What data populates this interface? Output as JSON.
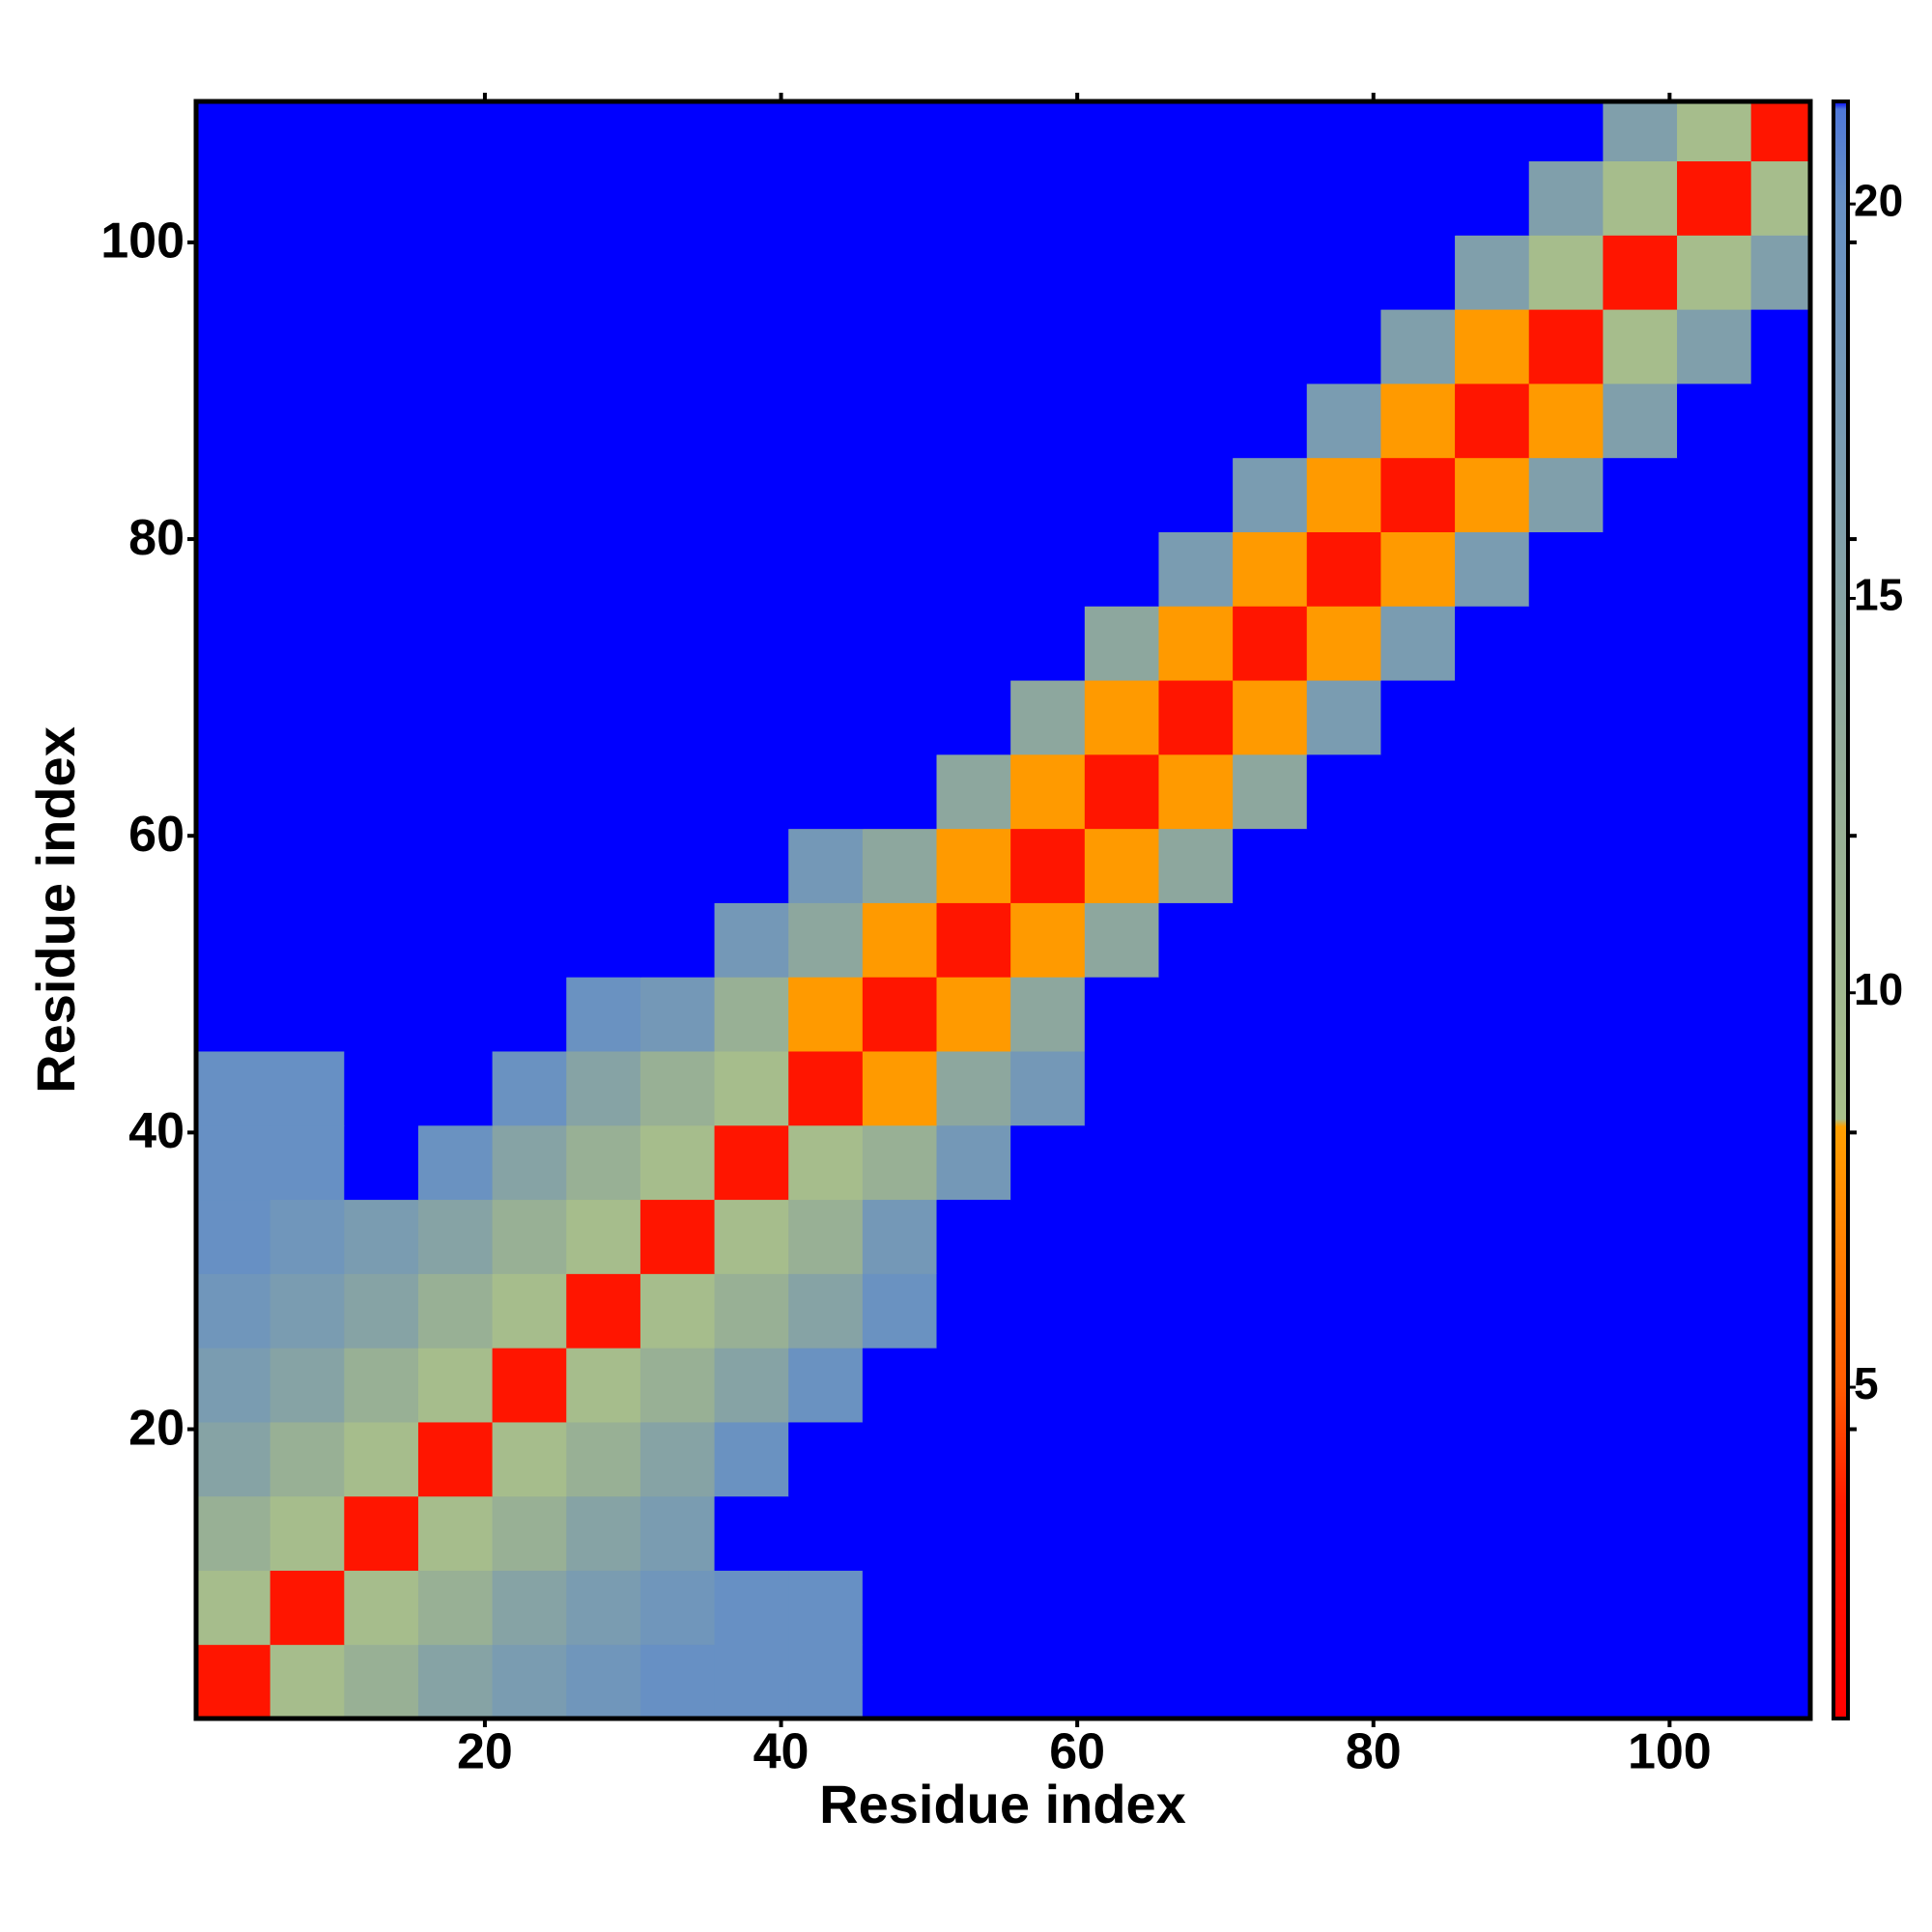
{
  "chart_data": {
    "type": "heatmap",
    "x_label": "Residue index",
    "y_label": "Residue index",
    "x": [
      3,
      8,
      13,
      18,
      23,
      28,
      33,
      38,
      43,
      48,
      53,
      58,
      63,
      68,
      73,
      78,
      83,
      88,
      93,
      98,
      103,
      108
    ],
    "y": [
      3,
      8,
      13,
      18,
      23,
      28,
      33,
      38,
      43,
      48,
      53,
      58,
      63,
      68,
      73,
      78,
      83,
      88,
      93,
      98,
      103,
      108
    ],
    "z": [
      [
        3,
        9,
        12,
        15,
        17,
        18.5,
        20,
        20,
        20,
        21.3,
        21.3,
        21.3,
        21.3,
        21.3,
        21.3,
        21.3,
        21.3,
        21.3,
        21.3,
        21.3,
        21.3,
        21.3
      ],
      [
        9,
        3,
        9,
        12,
        15,
        17,
        18.5,
        20,
        20,
        21.3,
        21.3,
        21.3,
        21.3,
        21.3,
        21.3,
        21.3,
        21.3,
        21.3,
        21.3,
        21.3,
        21.3,
        21.3
      ],
      [
        12,
        9,
        3,
        9,
        12,
        15,
        17,
        21.3,
        21.3,
        21.3,
        21.3,
        21.3,
        21.3,
        21.3,
        21.3,
        21.3,
        21.3,
        21.3,
        21.3,
        21.3,
        21.3,
        21.3
      ],
      [
        15,
        12,
        9,
        3,
        9,
        12,
        15,
        19.5,
        21.3,
        21.3,
        21.3,
        21.3,
        21.3,
        21.3,
        21.3,
        21.3,
        21.3,
        21.3,
        21.3,
        21.3,
        21.3,
        21.3
      ],
      [
        17,
        15,
        12,
        9,
        3,
        9,
        12,
        15,
        19.5,
        21.3,
        21.3,
        21.3,
        21.3,
        21.3,
        21.3,
        21.3,
        21.3,
        21.3,
        21.3,
        21.3,
        21.3,
        21.3
      ],
      [
        18.5,
        17,
        15,
        12,
        9,
        3,
        9,
        12,
        15,
        19.5,
        21.3,
        21.3,
        21.3,
        21.3,
        21.3,
        21.3,
        21.3,
        21.3,
        21.3,
        21.3,
        21.3,
        21.3
      ],
      [
        20,
        18.5,
        17,
        15,
        12,
        9,
        3,
        9,
        12,
        18,
        21.3,
        21.3,
        21.3,
        21.3,
        21.3,
        21.3,
        21.3,
        21.3,
        21.3,
        21.3,
        21.3,
        21.3
      ],
      [
        20,
        20,
        21.3,
        19.5,
        15,
        12,
        9,
        3,
        9,
        12,
        18,
        21.3,
        21.3,
        21.3,
        21.3,
        21.3,
        21.3,
        21.3,
        21.3,
        21.3,
        21.3,
        21.3
      ],
      [
        20,
        20,
        21.3,
        21.3,
        19.5,
        15,
        12,
        9,
        3,
        8,
        14,
        18,
        21.3,
        21.3,
        21.3,
        21.3,
        21.3,
        21.3,
        21.3,
        21.3,
        21.3,
        21.3
      ],
      [
        21.3,
        21.3,
        21.3,
        21.3,
        21.3,
        19.5,
        18,
        12,
        8,
        3,
        8,
        14,
        21.3,
        21.3,
        21.3,
        21.3,
        21.3,
        21.3,
        21.3,
        21.3,
        21.3,
        21.3
      ],
      [
        21.3,
        21.3,
        21.3,
        21.3,
        21.3,
        21.3,
        21.3,
        18,
        14,
        8,
        3,
        8,
        14,
        21.3,
        21.3,
        21.3,
        21.3,
        21.3,
        21.3,
        21.3,
        21.3,
        21.3
      ],
      [
        21.3,
        21.3,
        21.3,
        21.3,
        21.3,
        21.3,
        21.3,
        21.3,
        18,
        14,
        8,
        3,
        8,
        14,
        21.3,
        21.3,
        21.3,
        21.3,
        21.3,
        21.3,
        21.3,
        21.3
      ],
      [
        21.3,
        21.3,
        21.3,
        21.3,
        21.3,
        21.3,
        21.3,
        21.3,
        21.3,
        21.3,
        14,
        8,
        3,
        8,
        14,
        21.3,
        21.3,
        21.3,
        21.3,
        21.3,
        21.3,
        21.3
      ],
      [
        21.3,
        21.3,
        21.3,
        21.3,
        21.3,
        21.3,
        21.3,
        21.3,
        21.3,
        21.3,
        21.3,
        14,
        8,
        3,
        8,
        17,
        21.3,
        21.3,
        21.3,
        21.3,
        21.3,
        21.3
      ],
      [
        21.3,
        21.3,
        21.3,
        21.3,
        21.3,
        21.3,
        21.3,
        21.3,
        21.3,
        21.3,
        21.3,
        21.3,
        14,
        8,
        3,
        8,
        17,
        21.3,
        21.3,
        21.3,
        21.3,
        21.3
      ],
      [
        21.3,
        21.3,
        21.3,
        21.3,
        21.3,
        21.3,
        21.3,
        21.3,
        21.3,
        21.3,
        21.3,
        21.3,
        21.3,
        17,
        8,
        3,
        8,
        17,
        21.3,
        21.3,
        21.3,
        21.3
      ],
      [
        21.3,
        21.3,
        21.3,
        21.3,
        21.3,
        21.3,
        21.3,
        21.3,
        21.3,
        21.3,
        21.3,
        21.3,
        21.3,
        21.3,
        17,
        8,
        3,
        8,
        16,
        21.3,
        21.3,
        21.3
      ],
      [
        21.3,
        21.3,
        21.3,
        21.3,
        21.3,
        21.3,
        21.3,
        21.3,
        21.3,
        21.3,
        21.3,
        21.3,
        21.3,
        21.3,
        21.3,
        17,
        8,
        3,
        8,
        16,
        21.3,
        21.3
      ],
      [
        21.3,
        21.3,
        21.3,
        21.3,
        21.3,
        21.3,
        21.3,
        21.3,
        21.3,
        21.3,
        21.3,
        21.3,
        21.3,
        21.3,
        21.3,
        21.3,
        16,
        8,
        3,
        9,
        16,
        21.3
      ],
      [
        21.3,
        21.3,
        21.3,
        21.3,
        21.3,
        21.3,
        21.3,
        21.3,
        21.3,
        21.3,
        21.3,
        21.3,
        21.3,
        21.3,
        21.3,
        21.3,
        21.3,
        16,
        9,
        3,
        9,
        16
      ],
      [
        21.3,
        21.3,
        21.3,
        21.3,
        21.3,
        21.3,
        21.3,
        21.3,
        21.3,
        21.3,
        21.3,
        21.3,
        21.3,
        21.3,
        21.3,
        21.3,
        21.3,
        21.3,
        16,
        9,
        3,
        9
      ],
      [
        21.3,
        21.3,
        21.3,
        21.3,
        21.3,
        21.3,
        21.3,
        21.3,
        21.3,
        21.3,
        21.3,
        21.3,
        21.3,
        21.3,
        21.3,
        21.3,
        21.3,
        21.3,
        21.3,
        16,
        9,
        3
      ]
    ],
    "xlim": [
      0.5,
      109.5
    ],
    "ylim": [
      0.5,
      109.5
    ],
    "xticks": [
      20,
      40,
      60,
      80,
      100
    ],
    "yticks": [
      20,
      40,
      60,
      80,
      100
    ],
    "zlim": [
      0.8,
      21.3
    ],
    "colorbar_ticks": [
      5,
      10,
      15,
      20
    ],
    "colorscale": [
      {
        "value": 0.8,
        "color": "#ff0000"
      },
      {
        "value": 3.5,
        "color": "#ff1a00"
      },
      {
        "value": 5,
        "color": "#ff5a00"
      },
      {
        "value": 8.3,
        "color": "#ffa000"
      },
      {
        "value": 8.4,
        "color": "#a9c08a"
      },
      {
        "value": 13,
        "color": "#93ab98"
      },
      {
        "value": 20,
        "color": "#6790c4"
      },
      {
        "value": 21.2,
        "color": "#4f78d8"
      },
      {
        "value": 21.3,
        "color": "#0000ff"
      }
    ]
  }
}
